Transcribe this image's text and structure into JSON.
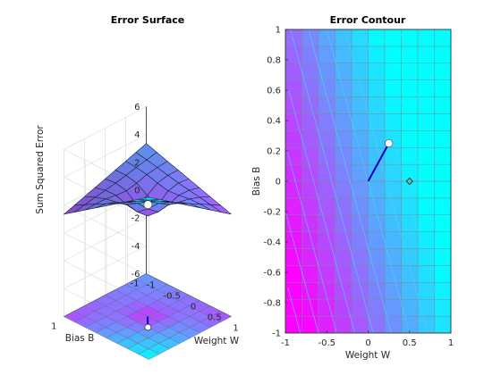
{
  "chart_data": [
    {
      "type": "surface",
      "title": "Error Surface",
      "xlabel": "Weight W",
      "ylabel": "Bias B",
      "zlabel": "Sum Squared Error",
      "xlim": [
        -1,
        1
      ],
      "ylim": [
        -1,
        1
      ],
      "zlim": [
        -6,
        6
      ],
      "x_ticks": [
        "-1",
        "-0.5",
        "0",
        "0.5",
        "1"
      ],
      "y_ticks": [
        "-1",
        "1"
      ],
      "z_ticks": [
        "6",
        "4",
        "2",
        "0",
        "-2",
        "-4",
        "-6"
      ],
      "surface_z_at_corners": {
        "w-1_b-1": 3.2,
        "w-1_b1": 1.2,
        "w1_b-1": 1.2,
        "w1_b1": 5.5
      },
      "surface_min": {
        "w": 0.0,
        "b": 0.0,
        "z": -0.2
      },
      "contour_projection_z": -6,
      "path": [
        {
          "w": 0.0,
          "b": 0.0
        },
        {
          "w": 0.25,
          "b": 0.25
        }
      ],
      "current_point": {
        "w": 0.25,
        "b": 0.25
      }
    },
    {
      "type": "contour",
      "title": "Error Contour",
      "xlabel": "Weight W",
      "ylabel": "Bias B",
      "xlim": [
        -1,
        1
      ],
      "ylim": [
        -1,
        1
      ],
      "x_ticks": [
        "-1",
        "-0.5",
        "0",
        "0.5",
        "1"
      ],
      "y_ticks": [
        "1",
        "0.8",
        "0.6",
        "0.4",
        "0.2",
        "0",
        "-0.2",
        "-0.4",
        "-0.6",
        "-0.8",
        "-1"
      ],
      "path": [
        {
          "w": 0.0,
          "b": 0.0
        },
        {
          "w": 0.25,
          "b": 0.25
        }
      ],
      "current_point": {
        "w": 0.25,
        "b": 0.25
      },
      "target_point": {
        "w": 0.5,
        "b": 0.0
      }
    }
  ],
  "colors": {
    "surface_low": "#ff00ff",
    "surface_high": "#00ffff",
    "path": "#0000cc",
    "contour_line": "#4dd2ff"
  }
}
